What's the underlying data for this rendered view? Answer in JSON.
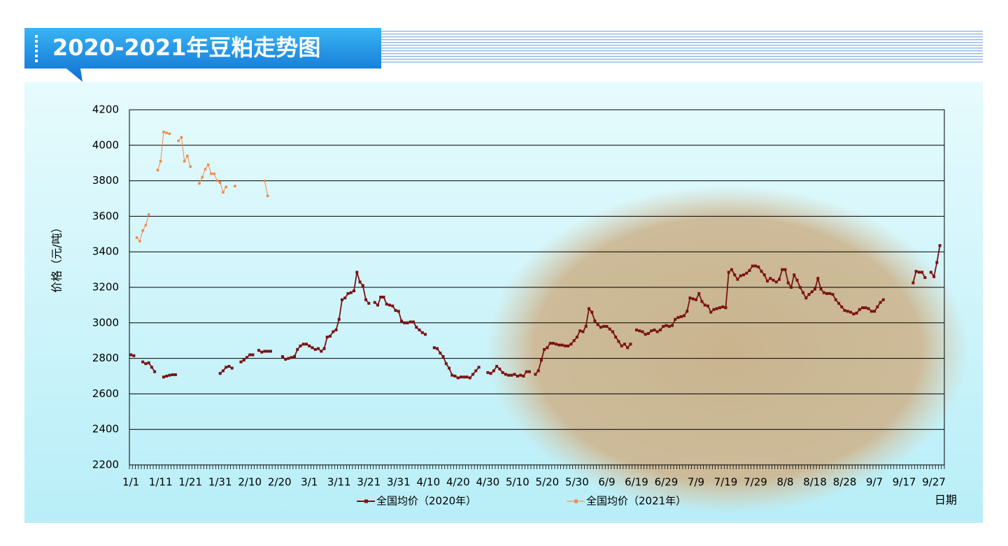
{
  "chart_data": {
    "type": "line",
    "title": "2020-2021年豆粕走势图",
    "y_label": "价格（元/吨）",
    "x_label": "日期",
    "legend": "bottom",
    "grid": true,
    "ylim": [
      2200,
      4200
    ],
    "yticks": [
      2200,
      2400,
      2600,
      2800,
      3000,
      3200,
      3400,
      3600,
      3800,
      4000,
      4200
    ],
    "categories": [
      "1/1",
      null,
      null,
      null,
      null,
      null,
      null,
      null,
      null,
      null,
      "1/11",
      null,
      null,
      null,
      null,
      null,
      null,
      null,
      null,
      null,
      "1/21",
      null,
      null,
      null,
      null,
      null,
      null,
      null,
      null,
      null,
      "1/31",
      null,
      null,
      null,
      null,
      null,
      null,
      null,
      null,
      null,
      "2/10",
      null,
      null,
      null,
      null,
      null,
      null,
      null,
      null,
      null,
      "2/20",
      null,
      null,
      null,
      null,
      null,
      null,
      null,
      null,
      null,
      "3/1",
      null,
      null,
      null,
      null,
      null,
      null,
      null,
      null,
      null,
      "3/11",
      null,
      null,
      null,
      null,
      null,
      null,
      null,
      null,
      null,
      "3/21",
      null,
      null,
      null,
      null,
      null,
      null,
      null,
      null,
      null,
      "3/31",
      null,
      null,
      null,
      null,
      null,
      null,
      null,
      null,
      null,
      "4/10",
      null,
      null,
      null,
      null,
      null,
      null,
      null,
      null,
      null,
      "4/20",
      null,
      null,
      null,
      null,
      null,
      null,
      null,
      null,
      null,
      "4/30",
      null,
      null,
      null,
      null,
      null,
      null,
      null,
      null,
      null,
      "5/10",
      null,
      null,
      null,
      null,
      null,
      null,
      null,
      null,
      null,
      "5/20",
      null,
      null,
      null,
      null,
      null,
      null,
      null,
      null,
      null,
      "5/30",
      null,
      null,
      null,
      null,
      null,
      null,
      null,
      null,
      null,
      "6/9",
      null,
      null,
      null,
      null,
      null,
      null,
      null,
      null,
      null,
      "6/19",
      null,
      null,
      null,
      null,
      null,
      null,
      null,
      null,
      null,
      "6/29",
      null,
      null,
      null,
      null,
      null,
      null,
      null,
      null,
      null,
      "7/9",
      null,
      null,
      null,
      null,
      null,
      null,
      null,
      null,
      null,
      "7/19",
      null,
      null,
      null,
      null,
      null,
      null,
      null,
      null,
      null,
      "7/29",
      null,
      null,
      null,
      null,
      null,
      null,
      null,
      null,
      null,
      "8/8",
      null,
      null,
      null,
      null,
      null,
      null,
      null,
      null,
      null,
      "8/18",
      null,
      null,
      null,
      null,
      null,
      null,
      null,
      null,
      null,
      "8/28",
      null,
      null,
      null,
      null,
      null,
      null,
      null,
      null,
      null,
      "9/7",
      null,
      null,
      null,
      null,
      null,
      null,
      null,
      null,
      null,
      "9/17",
      null,
      null,
      null,
      null,
      null,
      null,
      null,
      null,
      null,
      "9/27",
      null,
      null,
      null
    ],
    "series": [
      {
        "name": "全国均价（2020年）",
        "color": "#7a1212",
        "marker": "square",
        "values": [
          2820,
          2815,
          null,
          null,
          2780,
          2770,
          2775,
          2750,
          2725,
          null,
          null,
          2695,
          2700,
          2705,
          2708,
          2708,
          null,
          null,
          null,
          null,
          null,
          null,
          null,
          null,
          null,
          null,
          null,
          null,
          null,
          null,
          2715,
          2730,
          2750,
          2755,
          2745,
          null,
          null,
          2780,
          2790,
          2805,
          2820,
          2820,
          null,
          2845,
          2835,
          2840,
          2840,
          2840,
          null,
          null,
          null,
          2810,
          2795,
          2800,
          2805,
          2810,
          2850,
          2870,
          2880,
          2880,
          2870,
          2860,
          2850,
          2855,
          2840,
          2855,
          2920,
          2925,
          2950,
          2960,
          3020,
          3130,
          3140,
          3165,
          3170,
          3180,
          3285,
          3230,
          3210,
          3130,
          3110,
          null,
          3115,
          3100,
          3145,
          3145,
          3105,
          3100,
          3095,
          3070,
          3065,
          3010,
          3000,
          3000,
          3005,
          3005,
          2975,
          2960,
          2945,
          2935,
          null,
          null,
          2860,
          2855,
          2830,
          2810,
          2770,
          2745,
          2705,
          2700,
          2690,
          2695,
          2695,
          2695,
          2690,
          2710,
          2730,
          2750,
          null,
          null,
          2720,
          2715,
          2730,
          2755,
          2740,
          2720,
          2710,
          2705,
          2705,
          2710,
          2700,
          2705,
          2700,
          2725,
          2725,
          null,
          2710,
          2730,
          2790,
          2850,
          2860,
          2885,
          2885,
          2880,
          2875,
          2875,
          2870,
          2870,
          2880,
          2900,
          2920,
          2955,
          2950,
          2980,
          3080,
          3060,
          3010,
          2990,
          2975,
          2980,
          2980,
          2965,
          2950,
          2920,
          2895,
          2870,
          2880,
          2860,
          2880,
          null,
          2960,
          2955,
          2950,
          2935,
          2940,
          2955,
          2960,
          2950,
          2960,
          2980,
          2985,
          2980,
          2985,
          3020,
          3030,
          3035,
          3040,
          3065,
          3140,
          3135,
          3130,
          3165,
          3120,
          3100,
          3095,
          3060,
          3075,
          3080,
          3085,
          3090,
          3085,
          3285,
          3300,
          3270,
          3245,
          3265,
          3270,
          3280,
          3295,
          3320,
          3320,
          3315,
          3290,
          3270,
          3235,
          3250,
          3240,
          3230,
          3245,
          3300,
          3300,
          3225,
          3200,
          3270,
          3240,
          3200,
          3170,
          3140,
          3160,
          3175,
          3190,
          3250,
          3190,
          3170,
          3165,
          3165,
          3160,
          3130,
          3110,
          3090,
          3070,
          3065,
          3060,
          3050,
          3055,
          3075,
          3085,
          3085,
          3080,
          3065,
          3065,
          3090,
          3115,
          3130,
          null,
          null,
          null,
          null,
          null,
          null,
          null,
          null,
          null,
          3225,
          3290,
          3285,
          3285,
          3255,
          null,
          3285,
          3260,
          3340,
          3435,
          null
        ]
      },
      {
        "name": "全国均价（2021年）",
        "color": "#f0894a",
        "marker": "square",
        "values": [
          null,
          null,
          3480,
          3460,
          3520,
          3550,
          3610,
          null,
          null,
          3860,
          3910,
          4075,
          4070,
          4065,
          null,
          null,
          4025,
          4045,
          3910,
          3940,
          3880,
          null,
          null,
          3785,
          3820,
          3865,
          3890,
          3840,
          3840,
          3800,
          3790,
          3735,
          3765,
          null,
          null,
          3770,
          null,
          null,
          null,
          null,
          null,
          null,
          null,
          null,
          null,
          3800,
          3715,
          null,
          null,
          null,
          null,
          null,
          null,
          null,
          null,
          null,
          null,
          null,
          null,
          null,
          null,
          null,
          null,
          null,
          null,
          null,
          null,
          null,
          null,
          null,
          null,
          null,
          null,
          null,
          null,
          null,
          null,
          null,
          null,
          null,
          null,
          null,
          null,
          null,
          null,
          null,
          null,
          null,
          null,
          null,
          null,
          null,
          null,
          null,
          null,
          null,
          null,
          null,
          null,
          null,
          null,
          null,
          null,
          null,
          null,
          null,
          null,
          null,
          null,
          null,
          null,
          null,
          null,
          null,
          null,
          null,
          null,
          null,
          null,
          null,
          null,
          null,
          null,
          null,
          null,
          null,
          null,
          null,
          null,
          null,
          null,
          null,
          null,
          null,
          null,
          null,
          null,
          null,
          null,
          null,
          null,
          null,
          null,
          null,
          null,
          null,
          null,
          null,
          null,
          null,
          null,
          null,
          null,
          null,
          null,
          null,
          null,
          null,
          null,
          null,
          null,
          null,
          null,
          null,
          null,
          null,
          null,
          null,
          null,
          null,
          null,
          null,
          null,
          null,
          null,
          null,
          null,
          null,
          null,
          null,
          null,
          null,
          null,
          null,
          null,
          null,
          null,
          null,
          null,
          null,
          null,
          null,
          null,
          null,
          null,
          null,
          null,
          null,
          null,
          null,
          null,
          null,
          null,
          null,
          null,
          null,
          null,
          null,
          null,
          null,
          null,
          null,
          null,
          null,
          null,
          null,
          null,
          null,
          null,
          null,
          null,
          null,
          null,
          null,
          null,
          null,
          null,
          null,
          null,
          null,
          null,
          null,
          null,
          null,
          null,
          null,
          null,
          null,
          null,
          null,
          null,
          null,
          null,
          null,
          null,
          null,
          null,
          null,
          null,
          null,
          null,
          null,
          null,
          null,
          null,
          null,
          null,
          null,
          null,
          null,
          null,
          null,
          null,
          null,
          null,
          null,
          null,
          null,
          null,
          null,
          null,
          null,
          null,
          null
        ]
      }
    ]
  }
}
